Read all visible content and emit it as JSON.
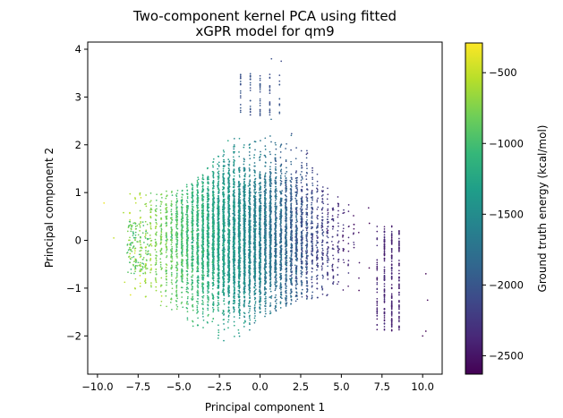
{
  "chart_data": {
    "type": "scatter",
    "title_lines": [
      "Two-component kernel PCA using fitted",
      "xGPR model for qm9"
    ],
    "xlabel": "Principal component 1",
    "ylabel": "Principal component 2",
    "xlim": [
      -10.6,
      11.2
    ],
    "ylim": [
      -2.8,
      4.15
    ],
    "xticks": [
      -10.0,
      -7.5,
      -5.0,
      -2.5,
      0.0,
      2.5,
      5.0,
      7.5,
      10.0
    ],
    "xtick_labels": [
      "−10.0",
      "−7.5",
      "−5.0",
      "−2.5",
      "0.0",
      "2.5",
      "5.0",
      "7.5",
      "10.0"
    ],
    "yticks": [
      -2,
      -1,
      0,
      1,
      2,
      3,
      4
    ],
    "ytick_labels": [
      "−2",
      "−1",
      "0",
      "1",
      "2",
      "3",
      "4"
    ],
    "grid": false,
    "colormap": "viridis",
    "colorbar": {
      "label": "Ground truth energy (kcal/mol)",
      "range": [
        -2630,
        -290
      ],
      "ticks": [
        -2500,
        -2000,
        -1500,
        -1000,
        -500
      ],
      "tick_labels": [
        "−2500",
        "−2000",
        "−1500",
        "−1000",
        "−500"
      ]
    },
    "marker_color_low": "#440154",
    "marker_color_high": "#fde725",
    "series": [
      {
        "points_described_as_density": true,
        "x_range": [
          -9.6,
          10.3
        ],
        "y_range": [
          -2.5,
          3.8
        ],
        "notable_points": [
          {
            "x": -9.6,
            "y": 0.78,
            "energy": -350
          },
          {
            "x": -9.0,
            "y": 0.05,
            "energy": -500
          },
          {
            "x": -8.4,
            "y": 0.58,
            "energy": -600
          },
          {
            "x": 10.2,
            "y": -0.7,
            "energy": -2600
          },
          {
            "x": 10.3,
            "y": -1.25,
            "energy": -2600
          },
          {
            "x": 10.0,
            "y": -2.0,
            "energy": -2600
          },
          {
            "x": 10.2,
            "y": -1.9,
            "energy": -2600
          },
          {
            "x": 0.7,
            "y": 3.8,
            "energy": -2050
          },
          {
            "x": 1.3,
            "y": 3.75,
            "energy": -2100
          }
        ]
      }
    ]
  }
}
